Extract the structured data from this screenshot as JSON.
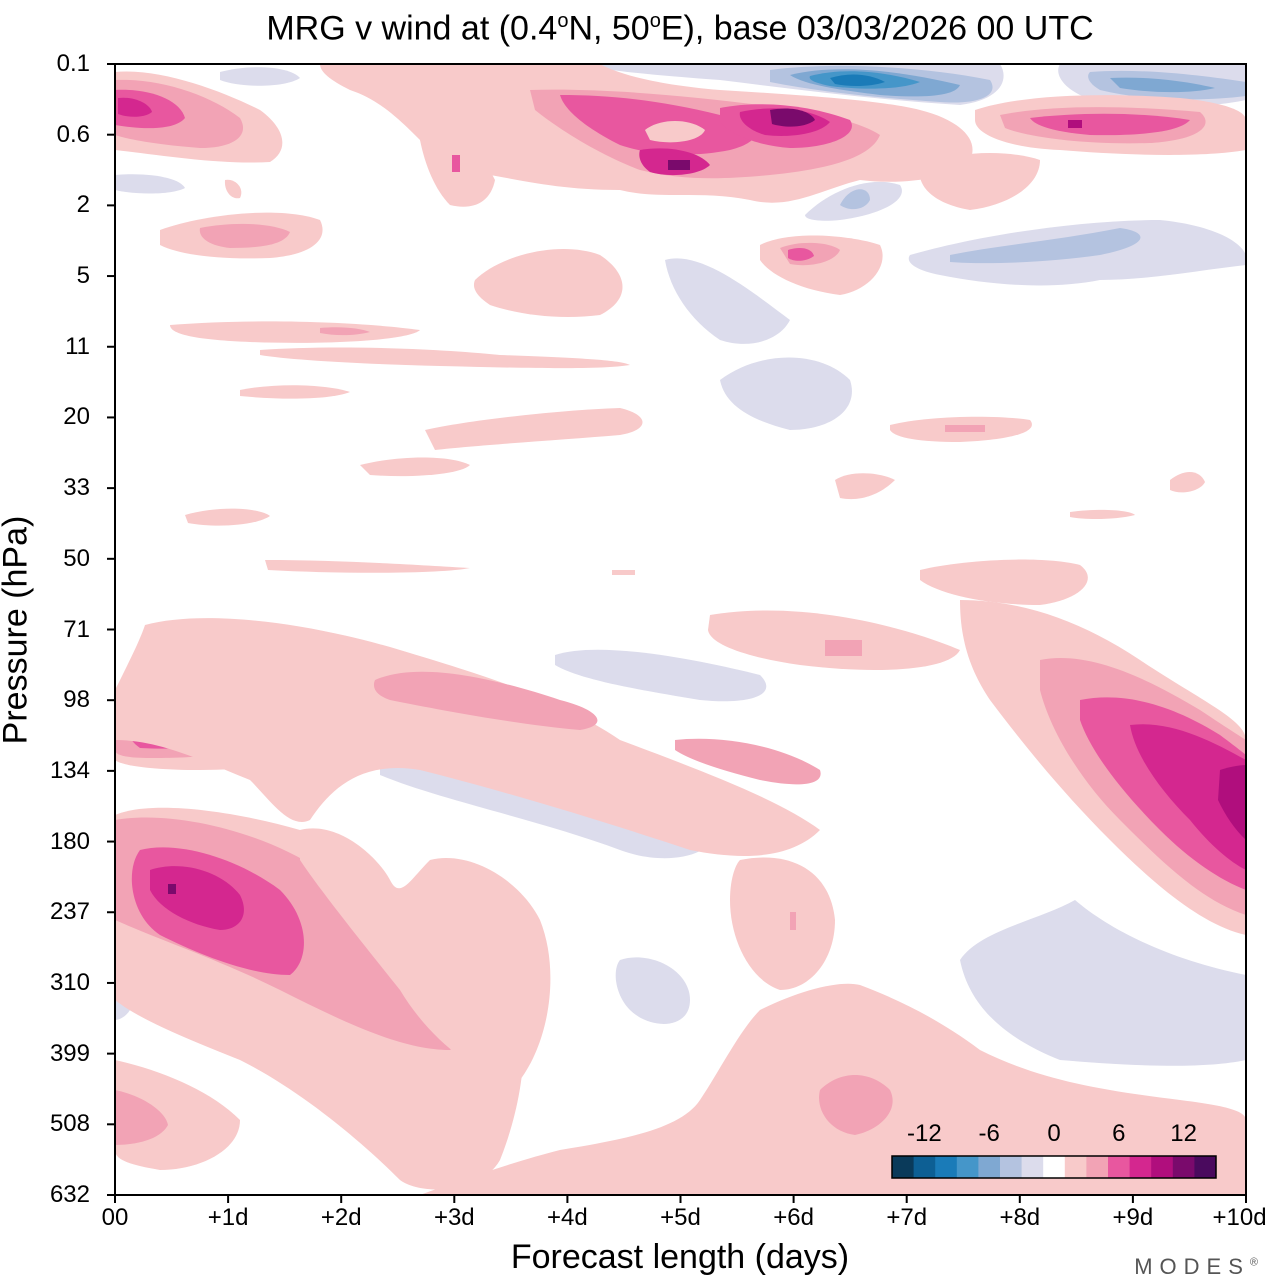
{
  "chart_data": {
    "type": "heatmap",
    "title": "MRG v wind at (0.4°N, 50°E),  base 03/03/2026  00 UTC",
    "title_parts": {
      "prefix": "MRG v wind at (0.4",
      "deg1": "o",
      "mid": "N, 50",
      "deg2": "o",
      "suffix": "E),  base 03/03/2026  00 UTC"
    },
    "xlabel": "Forecast length (days)",
    "ylabel": "Pressure (hPa)",
    "x_ticks": [
      "00",
      "+1d",
      "+2d",
      "+3d",
      "+4d",
      "+5d",
      "+6d",
      "+7d",
      "+8d",
      "+9d",
      "+10d"
    ],
    "y_ticks": [
      "0.1",
      "0.6",
      "2",
      "5",
      "11",
      "20",
      "33",
      "50",
      "71",
      "98",
      "134",
      "180",
      "237",
      "310",
      "399",
      "508",
      "632"
    ],
    "xlim_days": [
      0,
      10
    ],
    "colorbar": {
      "tick_labels": [
        "-12",
        "-6",
        "0",
        "6",
        "12"
      ],
      "tick_values": [
        -12,
        -6,
        0,
        6,
        12
      ],
      "colors": [
        "#0a3a5a",
        "#0d5f94",
        "#1a7bb8",
        "#4596c9",
        "#7fa8d2",
        "#b4c3e0",
        "#dcdcec",
        "#ffffff",
        "#f8caca",
        "#f2a3b5",
        "#e8579f",
        "#d4278f",
        "#b00e7d",
        "#7a0a6c",
        "#4a0a5e"
      ]
    },
    "features": [
      {
        "sign": "+",
        "level": 3,
        "day": 0.6,
        "pressure": 237
      },
      {
        "sign": "+",
        "level": 3,
        "day": 0.6,
        "pressure": 115
      },
      {
        "sign": "+",
        "level": 4,
        "day": 9.9,
        "pressure": 150
      },
      {
        "sign": "+",
        "level": 4,
        "day": 6.0,
        "pressure": 0.4
      },
      {
        "sign": "+",
        "level": 3,
        "day": 5.0,
        "pressure": 1.0
      },
      {
        "sign": "+",
        "level": 3,
        "day": 8.5,
        "pressure": 0.5
      },
      {
        "sign": "-",
        "level": 4,
        "day": 6.5,
        "pressure": 0.15
      },
      {
        "sign": "-",
        "level": 3,
        "day": 9.4,
        "pressure": 0.2
      }
    ]
  },
  "brand": "MODES",
  "brand_mark": "®"
}
